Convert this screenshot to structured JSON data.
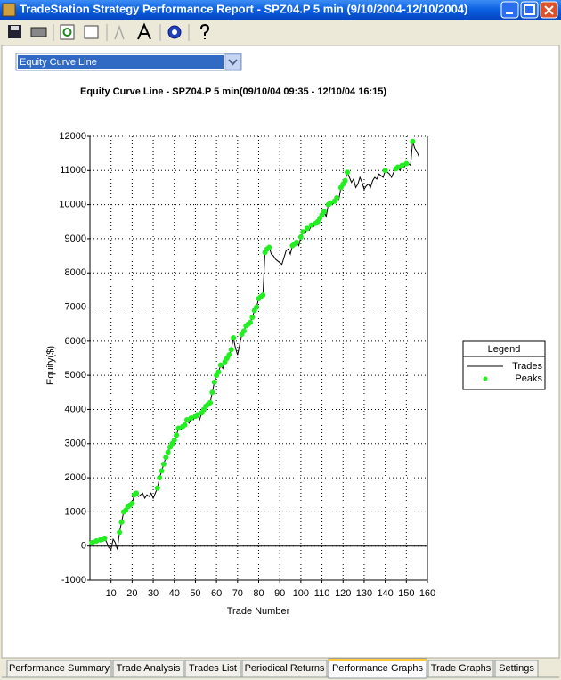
{
  "window": {
    "title": "TradeStation Strategy Performance Report - SPZ04.P 5 min (9/10/2004-12/10/2004)"
  },
  "selector": {
    "value": "Equity Curve Line"
  },
  "chart_data": {
    "type": "line",
    "title": "Equity Curve Line - SPZ04.P 5 min(09/10/04 09:35 - 12/10/04 16:15)",
    "xlabel": "Trade Number",
    "ylabel": "Equity($)",
    "x": [
      1,
      2,
      3,
      4,
      5,
      6,
      7,
      8,
      9,
      10,
      11,
      12,
      13,
      14,
      15,
      16,
      17,
      18,
      19,
      20,
      21,
      22,
      23,
      24,
      25,
      26,
      27,
      28,
      29,
      30,
      31,
      32,
      33,
      34,
      35,
      36,
      37,
      38,
      39,
      40,
      41,
      42,
      43,
      44,
      45,
      46,
      47,
      48,
      49,
      50,
      51,
      52,
      53,
      54,
      55,
      56,
      57,
      58,
      59,
      60,
      61,
      62,
      63,
      64,
      65,
      66,
      67,
      68,
      69,
      70,
      71,
      72,
      73,
      74,
      75,
      76,
      77,
      78,
      79,
      80,
      81,
      82,
      83,
      84,
      85,
      86,
      87,
      88,
      89,
      90,
      91,
      92,
      93,
      94,
      95,
      96,
      97,
      98,
      99,
      100,
      101,
      102,
      103,
      104,
      105,
      106,
      107,
      108,
      109,
      110,
      111,
      112,
      113,
      114,
      115,
      116,
      117,
      118,
      119,
      120,
      121,
      122,
      123,
      124,
      125,
      126,
      127,
      128,
      129,
      130,
      131,
      132,
      133,
      134,
      135,
      136,
      137,
      138,
      139,
      140,
      141,
      142,
      143,
      144,
      145,
      146,
      147,
      148,
      149,
      150,
      151,
      152,
      153,
      154,
      155,
      156
    ],
    "series": [
      {
        "name": "Trades",
        "color": "#000000",
        "style": "line",
        "values": [
          100,
          80,
          150,
          120,
          180,
          200,
          230,
          100,
          -50,
          -100,
          200,
          100,
          -100,
          400,
          700,
          1000,
          1050,
          1150,
          1200,
          1250,
          1500,
          1550,
          1450,
          1500,
          1550,
          1400,
          1500,
          1450,
          1550,
          1400,
          1550,
          1700,
          2000,
          2200,
          2400,
          2600,
          2750,
          2900,
          3000,
          3100,
          3250,
          3450,
          3400,
          3500,
          3550,
          3700,
          3600,
          3750,
          3700,
          3800,
          3850,
          3700,
          3900,
          4000,
          4100,
          4150,
          4200,
          4500,
          4800,
          5000,
          5100,
          5300,
          5200,
          5400,
          5500,
          5600,
          5750,
          6100,
          5800,
          5600,
          5900,
          6200,
          6300,
          6450,
          6500,
          6550,
          6700,
          6900,
          7000,
          7250,
          7300,
          7350,
          8600,
          8700,
          8750,
          8550,
          8500,
          8400,
          8350,
          8300,
          8250,
          8450,
          8650,
          8700,
          8550,
          8800,
          8850,
          8900,
          8800,
          9050,
          9200,
          9150,
          9300,
          9250,
          9400,
          9350,
          9450,
          9500,
          9600,
          9700,
          9800,
          9650,
          10000,
          10050,
          10000,
          10100,
          10200,
          10150,
          10500,
          10600,
          10700,
          10950,
          10800,
          10650,
          10750,
          10500,
          10600,
          10800,
          10650,
          10450,
          10550,
          10600,
          10500,
          10700,
          10800,
          10750,
          10900,
          10850,
          10800,
          11000,
          10950,
          10900,
          10800,
          10950,
          11050,
          11100,
          11000,
          11150,
          11100,
          11200,
          11200,
          11150,
          11850,
          11650,
          11550,
          11400
        ]
      },
      {
        "name": "Peaks",
        "color": "#22ee22",
        "style": "points",
        "values": [
          100,
          null,
          150,
          null,
          180,
          200,
          230,
          null,
          null,
          null,
          null,
          null,
          null,
          400,
          700,
          1000,
          1050,
          1150,
          1200,
          1250,
          1500,
          1550,
          null,
          null,
          null,
          null,
          null,
          null,
          null,
          null,
          null,
          1700,
          2000,
          2200,
          2400,
          2600,
          2750,
          2900,
          3000,
          3100,
          3250,
          3450,
          null,
          3500,
          3550,
          3700,
          null,
          3750,
          null,
          3800,
          3850,
          null,
          3900,
          4000,
          4100,
          4150,
          4200,
          4500,
          4800,
          5000,
          5100,
          5300,
          null,
          5400,
          5500,
          5600,
          5750,
          6100,
          null,
          null,
          null,
          6200,
          6300,
          6450,
          6500,
          6550,
          6700,
          6900,
          7000,
          7250,
          7300,
          7350,
          8600,
          8700,
          8750,
          null,
          null,
          null,
          null,
          null,
          null,
          null,
          null,
          null,
          null,
          8800,
          8850,
          8900,
          null,
          9050,
          9200,
          null,
          9300,
          null,
          9400,
          null,
          9450,
          9500,
          9600,
          9700,
          9800,
          null,
          10000,
          10050,
          null,
          10100,
          10200,
          null,
          10500,
          10600,
          10700,
          10950,
          null,
          null,
          null,
          null,
          null,
          null,
          null,
          null,
          null,
          null,
          null,
          null,
          null,
          null,
          null,
          null,
          null,
          11000,
          null,
          null,
          null,
          null,
          11050,
          11100,
          null,
          11150,
          null,
          11200,
          null,
          null,
          11850,
          null,
          null,
          null
        ]
      }
    ],
    "xlim": [
      0,
      160
    ],
    "xticks": [
      10,
      20,
      30,
      40,
      50,
      60,
      70,
      80,
      90,
      100,
      110,
      120,
      130,
      140,
      150,
      160
    ],
    "ylim": [
      -1000,
      12000
    ],
    "yticks": [
      -1000,
      0,
      1000,
      2000,
      3000,
      4000,
      5000,
      6000,
      7000,
      8000,
      9000,
      10000,
      11000,
      12000
    ],
    "grid": true,
    "legend": {
      "title": "Legend",
      "position": "right"
    }
  },
  "tabs": {
    "items": [
      "Performance Summary",
      "Trade Analysis",
      "Trades List",
      "Periodical Returns",
      "Performance Graphs",
      "Trade Graphs",
      "Settings"
    ],
    "active": 4
  }
}
